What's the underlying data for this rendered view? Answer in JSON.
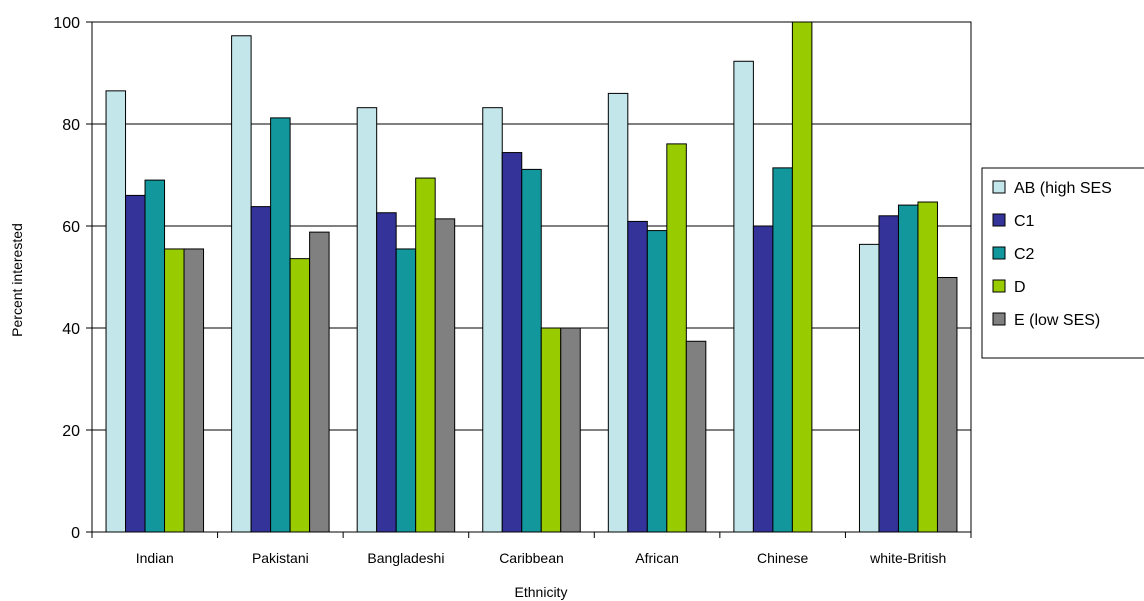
{
  "chart_data": {
    "type": "bar",
    "title": "",
    "xlabel": "Ethnicity",
    "ylabel": "Percent interested",
    "ylim": [
      0,
      100
    ],
    "yticks": [
      0,
      20,
      40,
      60,
      80,
      100
    ],
    "grid": true,
    "legend_position": "right",
    "categories": [
      "Indian",
      "Pakistani",
      "Bangladeshi",
      "Caribbean",
      "African",
      "Chinese",
      "white-British"
    ],
    "series": [
      {
        "name": "AB (high SES",
        "color": "#c3e6ea",
        "values": [
          86.5,
          97.3,
          83.2,
          83.2,
          86.0,
          92.3,
          56.4
        ]
      },
      {
        "name": "C1",
        "color": "#33339a",
        "values": [
          66.0,
          63.8,
          62.6,
          74.4,
          60.9,
          60.0,
          62.0
        ]
      },
      {
        "name": "C2",
        "color": "#11979c",
        "values": [
          69.0,
          81.2,
          55.5,
          71.1,
          59.1,
          71.4,
          64.1
        ]
      },
      {
        "name": "D",
        "color": "#99cc00",
        "values": [
          55.5,
          53.6,
          69.4,
          40.0,
          76.1,
          100.0,
          64.7
        ]
      },
      {
        "name": "E (low SES)",
        "color": "#808080",
        "values": [
          55.5,
          58.8,
          61.4,
          40.0,
          37.4,
          null,
          49.9
        ]
      }
    ]
  }
}
